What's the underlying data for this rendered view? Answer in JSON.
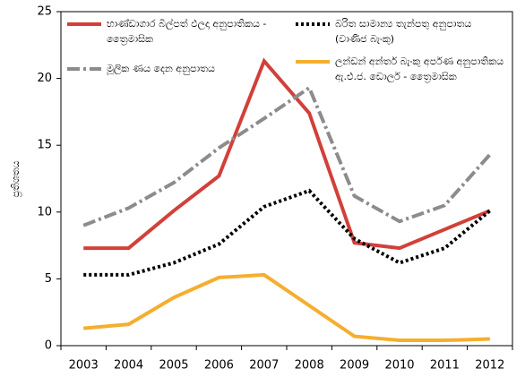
{
  "chart_data": {
    "type": "line",
    "ylabel": "ප්‍රතිශතය",
    "categories": [
      "2003",
      "2004",
      "2005",
      "2006",
      "2007",
      "2008",
      "2009",
      "2010",
      "2011",
      "2012"
    ],
    "series": [
      {
        "name": "භාණ්ඩාගාර බිල්පත් ඵලදා අනුපාතිකය - ත්‍රෛමාසික",
        "color": "#d2403a",
        "style": "solid",
        "values": [
          7.3,
          7.3,
          10.1,
          12.7,
          21.3,
          17.4,
          7.7,
          7.3,
          8.7,
          10.1
        ]
      },
      {
        "name": "බරිත සාමාන්‍ය තැන්පතු අනුපාතය (වාණිජ බැංකු)",
        "color": "#000000",
        "style": "dotted",
        "values": [
          5.3,
          5.3,
          6.2,
          7.6,
          10.4,
          11.6,
          8.0,
          6.2,
          7.3,
          10.1
        ]
      },
      {
        "name": "මූලික ණය දෙන අනුපාතය",
        "color": "#8c8c8c",
        "style": "dashdot",
        "values": [
          9.0,
          10.3,
          12.2,
          14.8,
          17.0,
          19.3,
          11.2,
          9.3,
          10.5,
          14.3
        ]
      },
      {
        "name": "ලන්ඩන් අන්තර් බැංකු අර්පණ අනුපාතිකය ඇ.එ.ජ. ඩොලර් - ත්‍රෛමාසික",
        "color": "#f5ae2f",
        "style": "solid",
        "values": [
          1.3,
          1.6,
          3.6,
          5.1,
          5.3,
          3.0,
          0.7,
          0.4,
          0.4,
          0.5
        ]
      }
    ],
    "ylim": [
      0,
      25
    ],
    "yticks": [
      0,
      5,
      10,
      15,
      20,
      25
    ]
  }
}
